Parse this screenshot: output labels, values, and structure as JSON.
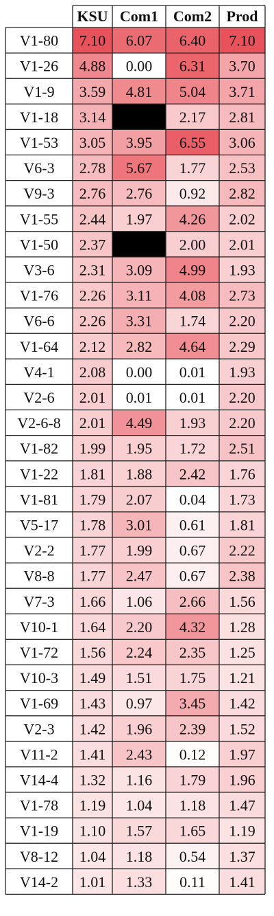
{
  "chart_data": {
    "type": "heatmap",
    "columns": [
      "KSU",
      "Com1",
      "Com2",
      "Prod"
    ],
    "rows": [
      {
        "label": "V1-80",
        "values": [
          "7.10",
          "6.07",
          "6.40",
          "7.10"
        ]
      },
      {
        "label": "V1-26",
        "values": [
          "4.88",
          "0.00",
          "6.31",
          "3.70"
        ]
      },
      {
        "label": "V1-9",
        "values": [
          "3.59",
          "4.81",
          "5.04",
          "3.71"
        ]
      },
      {
        "label": "V1-18",
        "values": [
          "3.14",
          null,
          "2.17",
          "2.81"
        ]
      },
      {
        "label": "V1-53",
        "values": [
          "3.05",
          "3.95",
          "6.55",
          "3.06"
        ]
      },
      {
        "label": "V6-3",
        "values": [
          "2.78",
          "5.67",
          "1.77",
          "2.53"
        ]
      },
      {
        "label": "V9-3",
        "values": [
          "2.76",
          "2.76",
          "0.92",
          "2.82"
        ]
      },
      {
        "label": "V1-55",
        "values": [
          "2.44",
          "1.97",
          "4.26",
          "2.02"
        ]
      },
      {
        "label": "V1-50",
        "values": [
          "2.37",
          null,
          "2.00",
          "2.01"
        ]
      },
      {
        "label": "V3-6",
        "values": [
          "2.31",
          "3.09",
          "4.99",
          "1.93"
        ]
      },
      {
        "label": "V1-76",
        "values": [
          "2.26",
          "3.11",
          "4.08",
          "2.73"
        ]
      },
      {
        "label": "V6-6",
        "values": [
          "2.26",
          "3.31",
          "1.74",
          "2.20"
        ]
      },
      {
        "label": "V1-64",
        "values": [
          "2.12",
          "2.82",
          "4.64",
          "2.29"
        ]
      },
      {
        "label": "V4-1",
        "values": [
          "2.08",
          "0.00",
          "0.01",
          "1.93"
        ]
      },
      {
        "label": "V2-6",
        "values": [
          "2.01",
          "0.01",
          "0.01",
          "2.20"
        ]
      },
      {
        "label": "V2-6-8",
        "values": [
          "2.01",
          "4.49",
          "1.93",
          "2.20"
        ]
      },
      {
        "label": "V1-82",
        "values": [
          "1.99",
          "1.95",
          "1.72",
          "2.51"
        ]
      },
      {
        "label": "V1-22",
        "values": [
          "1.81",
          "1.88",
          "2.42",
          "1.76"
        ]
      },
      {
        "label": "V1-81",
        "values": [
          "1.79",
          "2.07",
          "0.04",
          "1.73"
        ]
      },
      {
        "label": "V5-17",
        "values": [
          "1.78",
          "3.01",
          "0.61",
          "1.81"
        ]
      },
      {
        "label": "V2-2",
        "values": [
          "1.77",
          "1.99",
          "0.67",
          "2.22"
        ]
      },
      {
        "label": "V8-8",
        "values": [
          "1.77",
          "2.47",
          "0.67",
          "2.38"
        ]
      },
      {
        "label": "V7-3",
        "values": [
          "1.66",
          "1.06",
          "2.66",
          "1.56"
        ]
      },
      {
        "label": "V10-1",
        "values": [
          "1.64",
          "2.20",
          "4.32",
          "1.28"
        ]
      },
      {
        "label": "V1-72",
        "values": [
          "1.56",
          "2.24",
          "2.35",
          "1.25"
        ]
      },
      {
        "label": "V10-3",
        "values": [
          "1.49",
          "1.51",
          "1.75",
          "1.21"
        ]
      },
      {
        "label": "V1-69",
        "values": [
          "1.43",
          "0.97",
          "3.45",
          "1.42"
        ]
      },
      {
        "label": "V2-3",
        "values": [
          "1.42",
          "1.96",
          "2.39",
          "1.52"
        ]
      },
      {
        "label": "V11-2",
        "values": [
          "1.41",
          "2.43",
          "0.12",
          "1.97"
        ]
      },
      {
        "label": "V14-4",
        "values": [
          "1.32",
          "1.16",
          "1.79",
          "1.96"
        ]
      },
      {
        "label": "V1-78",
        "values": [
          "1.19",
          "1.04",
          "1.18",
          "1.47"
        ]
      },
      {
        "label": "V1-19",
        "values": [
          "1.10",
          "1.57",
          "1.65",
          "1.19"
        ]
      },
      {
        "label": "V8-12",
        "values": [
          "1.04",
          "1.18",
          "0.54",
          "1.37"
        ]
      },
      {
        "label": "V14-2",
        "values": [
          "1.01",
          "1.33",
          "0.11",
          "1.41"
        ]
      }
    ],
    "missing_color": "#000000",
    "scale_colors": {
      "low": "#ffffff",
      "high": "#e8525a"
    },
    "value_range": [
      0,
      7.1
    ]
  }
}
